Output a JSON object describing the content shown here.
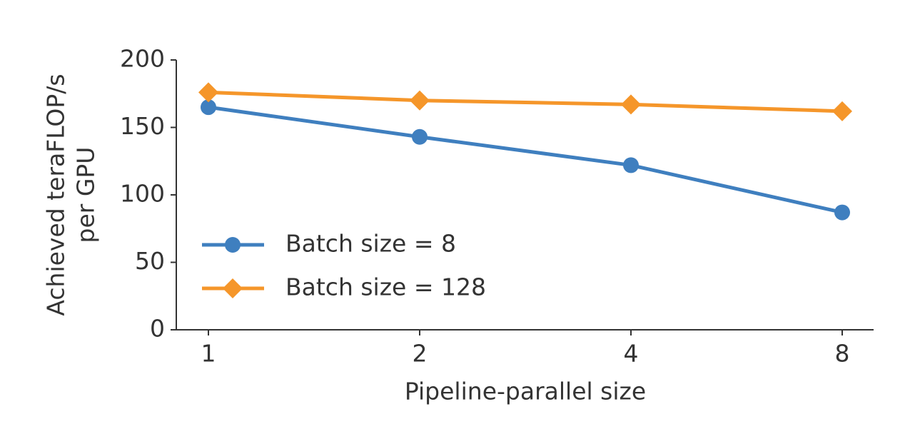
{
  "chart_data": {
    "type": "line",
    "xlabel": "Pipeline-parallel size",
    "ylabel": [
      "Achieved teraFLOP/s",
      "per GPU"
    ],
    "categories": [
      "1",
      "2",
      "4",
      "8"
    ],
    "series": [
      {
        "name": "Batch size = 8",
        "color": "#3f7fbf",
        "marker": "circle",
        "values": [
          165,
          143,
          122,
          87
        ]
      },
      {
        "name": "Batch size = 128",
        "color": "#f5962a",
        "marker": "diamond",
        "values": [
          176,
          170,
          167,
          162
        ]
      }
    ],
    "ylim": [
      0,
      200
    ],
    "yticks": [
      0,
      50,
      100,
      150,
      200
    ],
    "legend": "center left",
    "grid": false
  }
}
